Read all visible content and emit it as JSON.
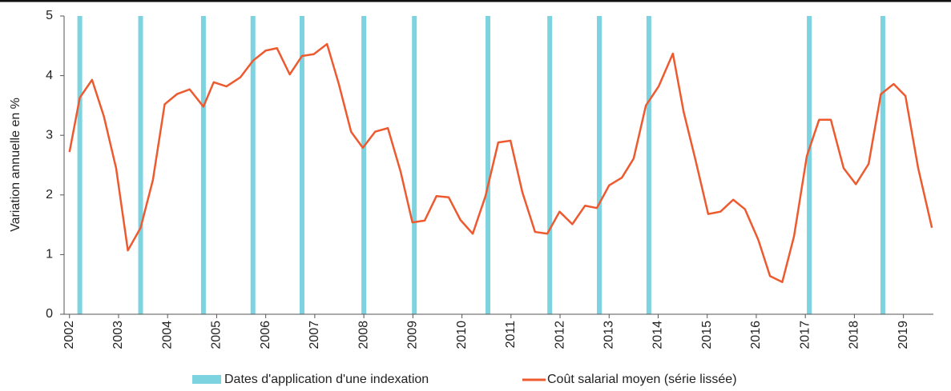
{
  "chart_data": {
    "type": "line",
    "y_label": "Variation annuelle en %",
    "x": [
      2002.0,
      2002.21,
      2002.46,
      2002.7,
      2002.95,
      2003.19,
      2003.45,
      2003.7,
      2003.94,
      2004.19,
      2004.45,
      2004.73,
      2004.94,
      2005.2,
      2005.48,
      2005.74,
      2006.0,
      2006.23,
      2006.49,
      2006.74,
      2006.98,
      2007.25,
      2007.49,
      2007.74,
      2007.98,
      2008.23,
      2008.49,
      2008.75,
      2008.99,
      2009.24,
      2009.48,
      2009.73,
      2009.97,
      2010.22,
      2010.48,
      2010.74,
      2010.99,
      2011.23,
      2011.49,
      2011.74,
      2011.99,
      2012.25,
      2012.51,
      2012.75,
      2013.0,
      2013.26,
      2013.5,
      2013.75,
      2014.01,
      2014.3,
      2014.52,
      2014.76,
      2015.02,
      2015.27,
      2015.53,
      2015.77,
      2016.04,
      2016.28,
      2016.53,
      2016.77,
      2017.03,
      2017.28,
      2017.52,
      2017.78,
      2018.03,
      2018.29,
      2018.54,
      2018.8,
      2019.04,
      2019.3,
      2019.58
    ],
    "series": [
      {
        "name": "Coût salarial moyen (série lissée)",
        "color": "#ee5a2f",
        "values": [
          2.72,
          3.63,
          3.93,
          3.32,
          2.45,
          1.07,
          1.45,
          2.25,
          3.52,
          3.69,
          3.77,
          3.48,
          3.89,
          3.82,
          3.97,
          4.25,
          4.42,
          4.46,
          4.02,
          4.33,
          4.36,
          4.53,
          3.86,
          3.06,
          2.79,
          3.06,
          3.12,
          2.39,
          1.54,
          1.57,
          1.98,
          1.96,
          1.58,
          1.35,
          1.98,
          2.88,
          2.91,
          2.05,
          1.38,
          1.35,
          1.72,
          1.51,
          1.82,
          1.78,
          2.16,
          2.29,
          2.61,
          3.5,
          3.82,
          4.37,
          3.39,
          2.59,
          1.68,
          1.72,
          1.92,
          1.76,
          1.25,
          0.64,
          0.54,
          1.31,
          2.65,
          3.26,
          3.26,
          2.45,
          2.18,
          2.52,
          3.69,
          3.86,
          3.66,
          2.45,
          1.45
        ]
      }
    ],
    "indexation": {
      "name": "Dates d'application d'une indexation",
      "color": "#7dd3e0",
      "x": [
        2002.21,
        2003.45,
        2004.73,
        2005.74,
        2006.74,
        2008.0,
        2009.03,
        2010.53,
        2011.79,
        2012.8,
        2013.81,
        2017.08,
        2018.58
      ]
    },
    "xlim": [
      2001.89,
      2019.61
    ],
    "xticks": [
      2002,
      2003,
      2004,
      2005,
      2006,
      2007,
      2008,
      2009,
      2010,
      2011,
      2012,
      2013,
      2014,
      2015,
      2016,
      2017,
      2018,
      2019
    ],
    "ylim": [
      0,
      5
    ],
    "yticks": [
      0,
      1,
      2,
      3,
      4,
      5
    ]
  }
}
